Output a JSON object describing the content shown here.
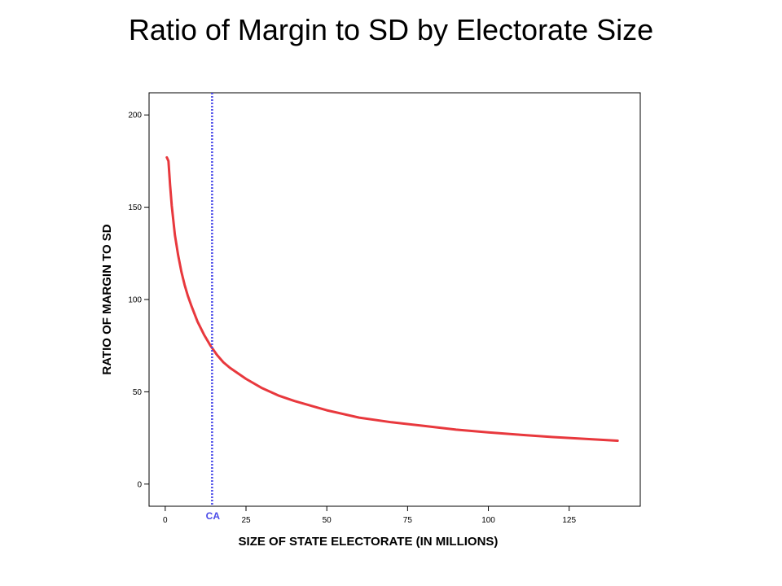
{
  "page": {
    "title": "Ratio of Margin to SD by Electorate Size"
  },
  "colors": {
    "curve": "#e8383d",
    "marker_line": "#4a4ae8",
    "axis": "#000000"
  },
  "chart_data": {
    "type": "line",
    "title": "",
    "xlabel": "SIZE OF STATE ELECTORATE (IN MILLIONS)",
    "ylabel": "RATIO OF MARGIN TO SD",
    "xlim": [
      -5,
      147
    ],
    "ylim": [
      -12,
      212
    ],
    "xticks": [
      0,
      25,
      50,
      75,
      100,
      125
    ],
    "yticks": [
      0,
      50,
      100,
      150,
      200
    ],
    "grid": false,
    "series": [
      {
        "x": [
          0.5,
          1,
          1.5,
          2,
          3,
          4,
          5,
          6,
          7,
          8,
          10,
          12,
          14,
          16,
          18,
          20,
          25,
          30,
          35,
          40,
          50,
          60,
          70,
          80,
          90,
          100,
          110,
          120,
          130,
          140
        ],
        "y": [
          177,
          175,
          162,
          151,
          135,
          124,
          115,
          108,
          102,
          97,
          88,
          81,
          75,
          70,
          66,
          63,
          57,
          52,
          48,
          45,
          40,
          36,
          33.5,
          31.5,
          29.5,
          28,
          26.7,
          25.5,
          24.5,
          23.5
        ]
      }
    ],
    "annotations": [
      {
        "label": "CA",
        "x": 14.5,
        "style": "vertical-dotted-line"
      }
    ]
  }
}
